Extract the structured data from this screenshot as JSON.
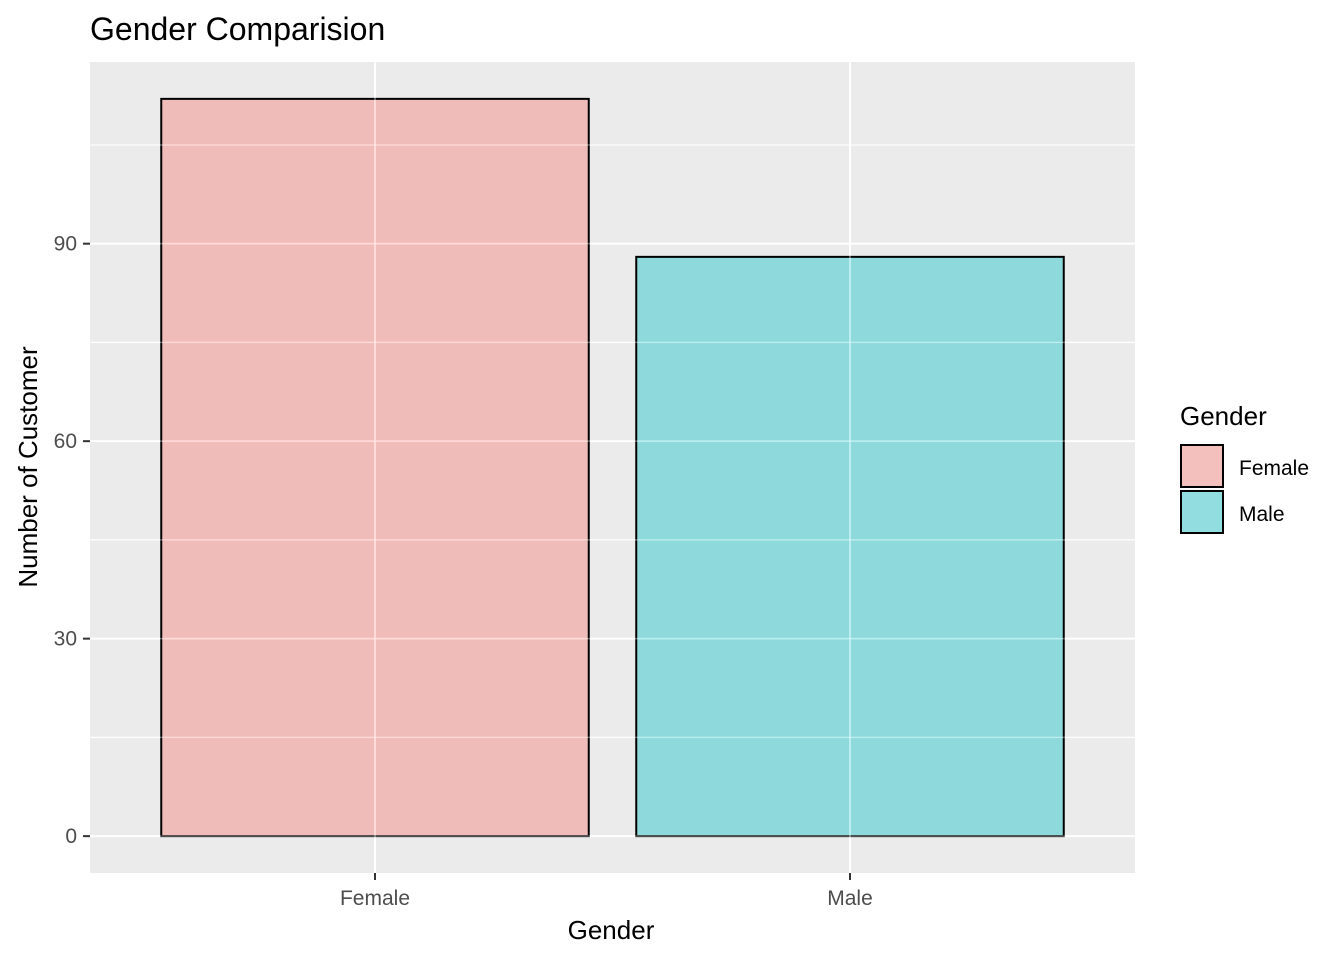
{
  "chart_data": {
    "type": "bar",
    "title": "Gender Comparision",
    "xlabel": "Gender",
    "ylabel": "Number of Customer",
    "categories": [
      "Female",
      "Male"
    ],
    "values": [
      112,
      88
    ],
    "colors": [
      "#F8766D",
      "#00BFC4"
    ],
    "bar_opacity": 0.4,
    "ylim": [
      -5.6,
      117.6
    ],
    "yticks": [
      0,
      30,
      60,
      90
    ],
    "grid": true,
    "legend": {
      "title": "Gender",
      "position": "right",
      "entries": [
        "Female",
        "Male"
      ]
    }
  }
}
